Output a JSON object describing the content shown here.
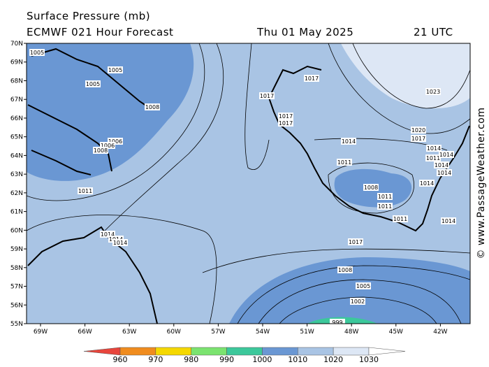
{
  "header": {
    "title": "Surface Pressure (mb)",
    "model": "ECMWF 021 Hour Forecast",
    "date": "Thu 01 May 2025",
    "time": "21 UTC"
  },
  "lat_labels": [
    "70N",
    "69N",
    "68N",
    "67N",
    "66N",
    "65N",
    "64N",
    "63N",
    "62N",
    "61N",
    "60N",
    "59N",
    "58N",
    "57N",
    "56N",
    "55N"
  ],
  "lon_labels": [
    "69W",
    "66W",
    "63W",
    "60W",
    "57W",
    "54W",
    "51W",
    "48W",
    "45W",
    "42W"
  ],
  "contour_labels": [
    "1005",
    "1005",
    "1005",
    "1008",
    "1006",
    "1006",
    "1008",
    "1011",
    "1014",
    "1014",
    "1014",
    "1017",
    "1017",
    "1017",
    "1017",
    "1014",
    "1011",
    "1008",
    "1011",
    "1011",
    "1011",
    "1014",
    "1014",
    "1014",
    "1014",
    "1014",
    "1011",
    "1014",
    "1023",
    "1020",
    "1017",
    "1017",
    "1008",
    "1005",
    "1002",
    "999"
  ],
  "colorbar": {
    "levels": [
      960,
      970,
      980,
      990,
      1000,
      1010,
      1020,
      1030
    ],
    "colors": [
      "#e8453c",
      "#f08c1e",
      "#f5d800",
      "#7be36f",
      "#3cc89b",
      "#6a97d3",
      "#a9c4e4",
      "#dde7f5",
      "#ffffff"
    ]
  },
  "watermark": "© www.PassageWeather.com"
}
